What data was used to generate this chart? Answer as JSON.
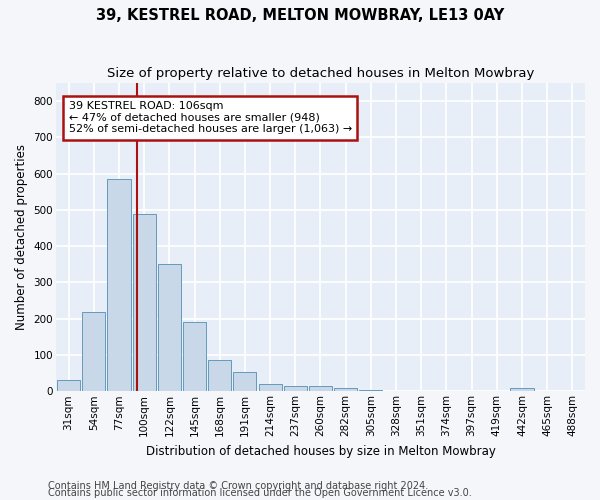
{
  "title": "39, KESTREL ROAD, MELTON MOWBRAY, LE13 0AY",
  "subtitle": "Size of property relative to detached houses in Melton Mowbray",
  "xlabel": "Distribution of detached houses by size in Melton Mowbray",
  "ylabel": "Number of detached properties",
  "categories": [
    "31sqm",
    "54sqm",
    "77sqm",
    "100sqm",
    "122sqm",
    "145sqm",
    "168sqm",
    "191sqm",
    "214sqm",
    "237sqm",
    "260sqm",
    "282sqm",
    "305sqm",
    "328sqm",
    "351sqm",
    "374sqm",
    "397sqm",
    "419sqm",
    "442sqm",
    "465sqm",
    "488sqm"
  ],
  "values": [
    30,
    218,
    585,
    490,
    350,
    190,
    85,
    52,
    20,
    15,
    15,
    8,
    3,
    2,
    2,
    2,
    2,
    2,
    8,
    2,
    2
  ],
  "bar_color": "#c8d8e8",
  "bar_edge_color": "#6699bb",
  "vline_x": 2.73,
  "vline_color": "#aa1111",
  "annotation_text": "39 KESTREL ROAD: 106sqm\n← 47% of detached houses are smaller (948)\n52% of semi-detached houses are larger (1,063) →",
  "annotation_box_color": "#ffffff",
  "annotation_box_edge_color": "#aa1111",
  "footer_line1": "Contains HM Land Registry data © Crown copyright and database right 2024.",
  "footer_line2": "Contains public sector information licensed under the Open Government Licence v3.0.",
  "ylim": [
    0,
    850
  ],
  "yticks": [
    0,
    100,
    200,
    300,
    400,
    500,
    600,
    700,
    800
  ],
  "plot_bg_color": "#e8eef8",
  "fig_bg_color": "#f4f6fa",
  "grid_color": "#ffffff",
  "title_fontsize": 10.5,
  "subtitle_fontsize": 9.5,
  "axis_label_fontsize": 8.5,
  "tick_fontsize": 7.5,
  "annotation_fontsize": 8,
  "footer_fontsize": 7
}
